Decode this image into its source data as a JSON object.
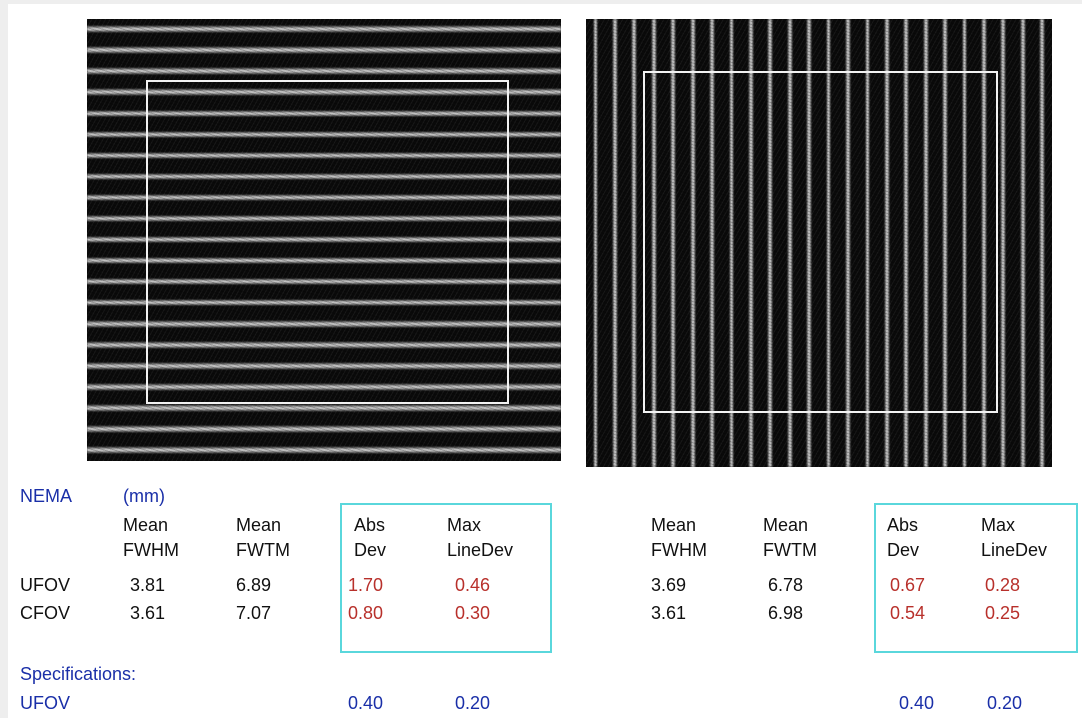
{
  "table": {
    "nema": "NEMA",
    "unit": "(mm)",
    "left": {
      "headers": [
        [
          "Mean",
          "FWHM"
        ],
        [
          "Mean",
          "FWTM"
        ],
        [
          "Abs",
          "Dev"
        ],
        [
          "Max",
          "LineDev"
        ]
      ],
      "rows": [
        {
          "label": "UFOV",
          "values": [
            "3.81",
            "6.89",
            "1.70",
            "0.46"
          ]
        },
        {
          "label": "CFOV",
          "values": [
            "3.61",
            "7.07",
            "0.80",
            "0.30"
          ]
        }
      ]
    },
    "right": {
      "headers": [
        [
          "Mean",
          "FWHM"
        ],
        [
          "Mean",
          "FWTM"
        ],
        [
          "Abs",
          "Dev"
        ],
        [
          "Max",
          "LineDev"
        ]
      ],
      "rows": [
        {
          "values": [
            "3.69",
            "6.78",
            "0.67",
            "0.28"
          ]
        },
        {
          "values": [
            "3.61",
            "6.98",
            "0.54",
            "0.25"
          ]
        }
      ]
    }
  },
  "specifications": {
    "title": "Specifications:",
    "row_label": "UFOV",
    "left_values": [
      "0.40",
      "0.20"
    ],
    "right_values": [
      "0.40",
      "0.20"
    ]
  },
  "colors": {
    "label_blue": "#1a2fa8",
    "deviation_red": "#b8302b",
    "highlight_box": "#5ad7dc"
  }
}
